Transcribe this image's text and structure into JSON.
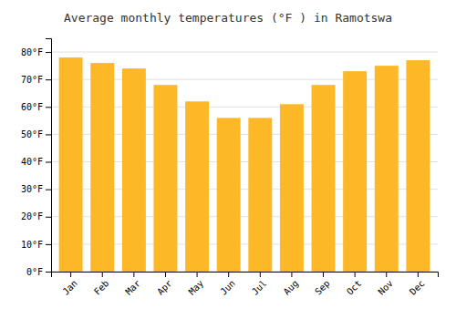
{
  "chart_data": {
    "type": "bar",
    "title": "Average monthly temperatures (°F ) in Ramotswa",
    "categories": [
      "Jan",
      "Feb",
      "Mar",
      "Apr",
      "May",
      "Jun",
      "Jul",
      "Aug",
      "Sep",
      "Oct",
      "Nov",
      "Dec"
    ],
    "values": [
      78,
      76,
      74,
      68,
      62,
      56,
      56,
      61,
      68,
      73,
      75,
      77
    ],
    "color": "#FDB827",
    "ylim": [
      0,
      85
    ],
    "yticks": [
      {
        "value": 0,
        "label": "0°F"
      },
      {
        "value": 10,
        "label": "10°F"
      },
      {
        "value": 20,
        "label": "20°F"
      },
      {
        "value": 30,
        "label": "30°F"
      },
      {
        "value": 40,
        "label": "40°F"
      },
      {
        "value": 50,
        "label": "50°F"
      },
      {
        "value": 60,
        "label": "60°F"
      },
      {
        "value": 70,
        "label": "70°F"
      },
      {
        "value": 80,
        "label": "80°F"
      }
    ],
    "grid": true
  }
}
